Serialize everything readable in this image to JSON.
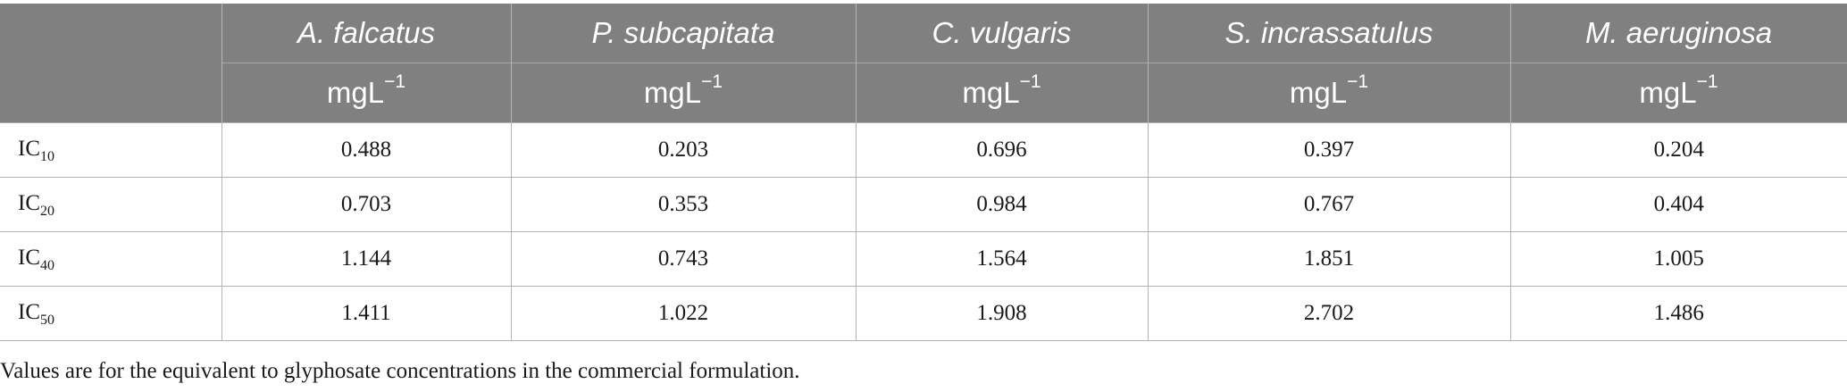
{
  "table": {
    "columns": [
      {
        "species": "A. falcatus",
        "unit": "mgL",
        "unit_exp": "−1"
      },
      {
        "species": "P. subcapitata",
        "unit": "mgL",
        "unit_exp": "−1"
      },
      {
        "species": "C. vulgaris",
        "unit": "mgL",
        "unit_exp": "−1"
      },
      {
        "species": "S. incrassatulus",
        "unit": "mgL",
        "unit_exp": "−1"
      },
      {
        "species": "M. aeruginosa",
        "unit": "mgL",
        "unit_exp": "−1"
      }
    ],
    "rows": [
      {
        "label": "IC",
        "sub": "10",
        "values": [
          "0.488",
          "0.203",
          "0.696",
          "0.397",
          "0.204"
        ]
      },
      {
        "label": "IC",
        "sub": "20",
        "values": [
          "0.703",
          "0.353",
          "0.984",
          "0.767",
          "0.404"
        ]
      },
      {
        "label": "IC",
        "sub": "40",
        "values": [
          "1.144",
          "0.743",
          "1.564",
          "1.851",
          "1.005"
        ]
      },
      {
        "label": "IC",
        "sub": "50",
        "values": [
          "1.411",
          "1.022",
          "1.908",
          "2.702",
          "1.486"
        ]
      }
    ]
  },
  "footnote": "Values are for the equivalent to glyphosate concentrations in the commercial formulation."
}
